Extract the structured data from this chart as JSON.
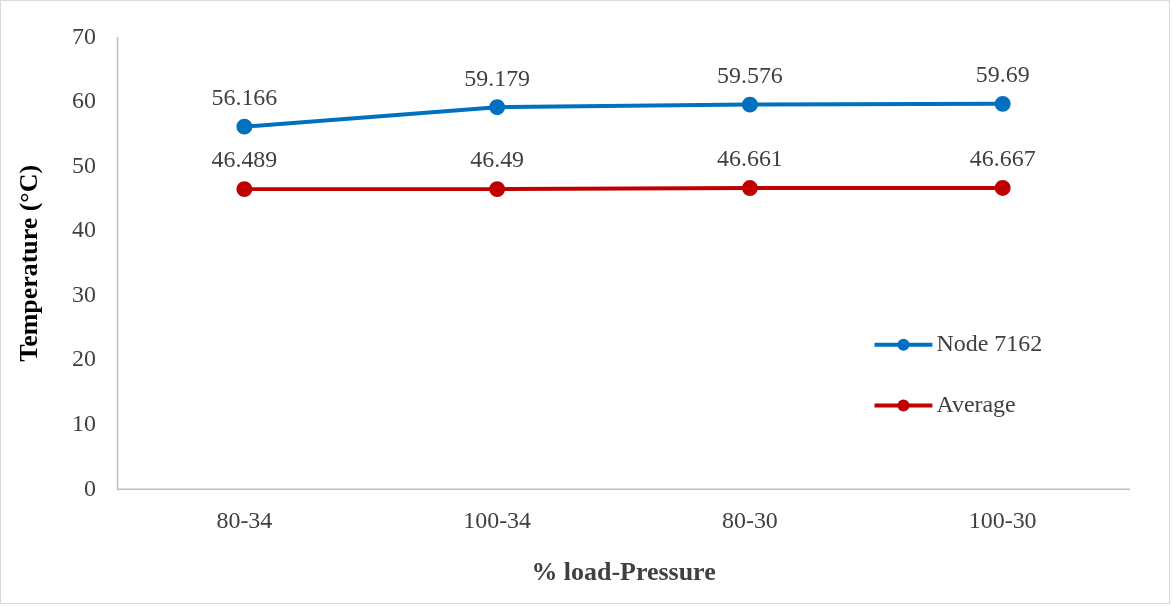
{
  "chart_data": {
    "type": "line",
    "xlabel": "% load-Pressure",
    "ylabel": "Temperature (°C)",
    "categories": [
      "80-34",
      "100-34",
      "80-30",
      "100-30"
    ],
    "series": [
      {
        "name": "Node 7162",
        "color": "#0070c0",
        "values": [
          56.166,
          59.179,
          59.576,
          59.69
        ]
      },
      {
        "name": "Average",
        "color": "#c00000",
        "values": [
          46.489,
          46.49,
          46.661,
          46.667
        ]
      }
    ],
    "ylim": [
      0,
      70
    ],
    "yticks": [
      0,
      10,
      20,
      30,
      40,
      50,
      60,
      70
    ],
    "grid": false,
    "legend": "right",
    "marker": "circle",
    "line_style": "solid",
    "data_labels": true
  }
}
